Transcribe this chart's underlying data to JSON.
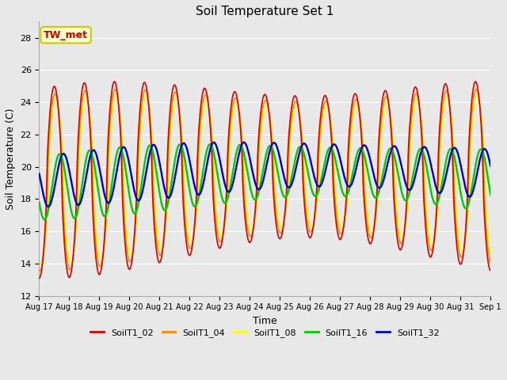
{
  "title": "Soil Temperature Set 1",
  "xlabel": "Time",
  "ylabel": "Soil Temperature (C)",
  "ylim": [
    12,
    29
  ],
  "yticks": [
    12,
    14,
    16,
    18,
    20,
    22,
    24,
    26,
    28
  ],
  "annotation_text": "TW_met",
  "annotation_color": "#cc0000",
  "annotation_bg": "#ffffcc",
  "annotation_border": "#cccc00",
  "series_colors": {
    "SoilT1_02": "#dd0000",
    "SoilT1_04": "#ff8800",
    "SoilT1_08": "#ffff00",
    "SoilT1_16": "#00cc00",
    "SoilT1_32": "#0000cc"
  },
  "series_order": [
    "SoilT1_02",
    "SoilT1_04",
    "SoilT1_08",
    "SoilT1_16",
    "SoilT1_32"
  ],
  "legend_colors": [
    "#dd0000",
    "#ff8800",
    "#ffff00",
    "#00cc00",
    "#0000cc"
  ],
  "bg_color": "#e8e8e8",
  "fig_bg_color": "#e8e8e8",
  "n_points": 720,
  "line_width": 1.2,
  "xtick_labels": [
    "Aug 17",
    "Aug 18",
    "Aug 19",
    "Aug 20",
    "Aug 21",
    "Aug 22",
    "Aug 23",
    "Aug 24",
    "Aug 25",
    "Aug 26",
    "Aug 27",
    "Aug 28",
    "Aug 29",
    "Aug 30",
    "Aug 31",
    "Sep 1"
  ],
  "figsize": [
    6.4,
    4.8
  ],
  "dpi": 100
}
